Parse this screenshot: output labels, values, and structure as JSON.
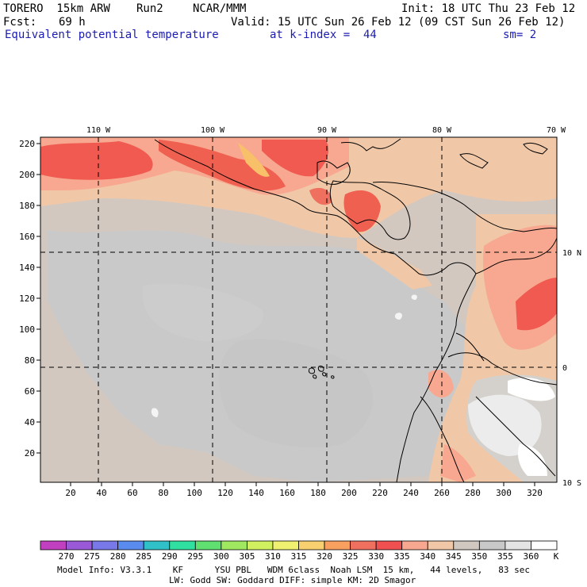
{
  "header": {
    "model": "TORERO  15km ARW",
    "run": "Run2",
    "org": "NCAR/MMM",
    "init": "Init: 18 UTC Thu 23 Feb 12",
    "fcst_label": "Fcst:",
    "fcst_value": "69 h",
    "valid": "Valid: 15 UTC Sun 26 Feb 12 (09 CST Sun 26 Feb 12)",
    "field": "Equivalent potential temperature",
    "level": "at k-index =  44",
    "smoothing": "sm= 2"
  },
  "map": {
    "lon_labels": [
      "110 W",
      "100 W",
      "90 W",
      "80 W",
      "70 W"
    ],
    "lat_labels": [
      "10 N",
      "0",
      "10 S"
    ],
    "y_ticks": [
      "220",
      "200",
      "180",
      "160",
      "140",
      "120",
      "100",
      "80",
      "60",
      "40",
      "20"
    ],
    "x_ticks": [
      "20",
      "40",
      "60",
      "80",
      "100",
      "120",
      "140",
      "160",
      "180",
      "200",
      "220",
      "240",
      "260",
      "280",
      "300",
      "320"
    ]
  },
  "colorbar": {
    "labels": [
      "270",
      "275",
      "280",
      "285",
      "290",
      "295",
      "300",
      "305",
      "310",
      "315",
      "320",
      "325",
      "330",
      "335",
      "340",
      "345",
      "350",
      "355",
      "360"
    ],
    "unit": "K",
    "colors": [
      "#c040c0",
      "#9a5ad8",
      "#7878e8",
      "#5a8cf0",
      "#30c0c8",
      "#30e0a0",
      "#60e070",
      "#a0e860",
      "#d0f060",
      "#f0f070",
      "#f8d070",
      "#f8a060",
      "#f07060",
      "#f05050",
      "#f8a890",
      "#f0c8a8",
      "#d0c8c0",
      "#c8c8c8",
      "#e4e4e4",
      "#ffffff"
    ]
  },
  "footer": {
    "line1": "Model Info: V3.3.1    KF      YSU PBL   WDM 6class  Noah LSM  15 km,   44 levels,   83 sec",
    "line2": "LW: Godd SW: Goddard DIFF: simple KM: 2D Smagor"
  }
}
